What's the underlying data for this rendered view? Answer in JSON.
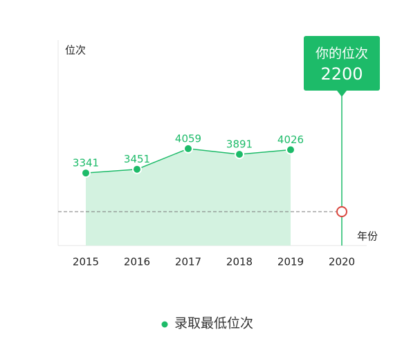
{
  "chart_data": {
    "type": "line",
    "y_label": "位次",
    "x_label": "年份",
    "categories": [
      "2015",
      "2016",
      "2017",
      "2018",
      "2019",
      "2020"
    ],
    "series": [
      {
        "name": "录取最低位次",
        "color": "#1dbb69",
        "fill": "#d3f2e0",
        "values": [
          3341,
          3451,
          4059,
          3891,
          4026,
          null
        ]
      }
    ],
    "ylim": [
      1200,
      7200
    ],
    "annotation": {
      "label": "你的位次",
      "category": "2020",
      "value": 2200,
      "color": "#1dbb69",
      "marker_color": "#d9463e"
    },
    "legend": "bottom"
  }
}
